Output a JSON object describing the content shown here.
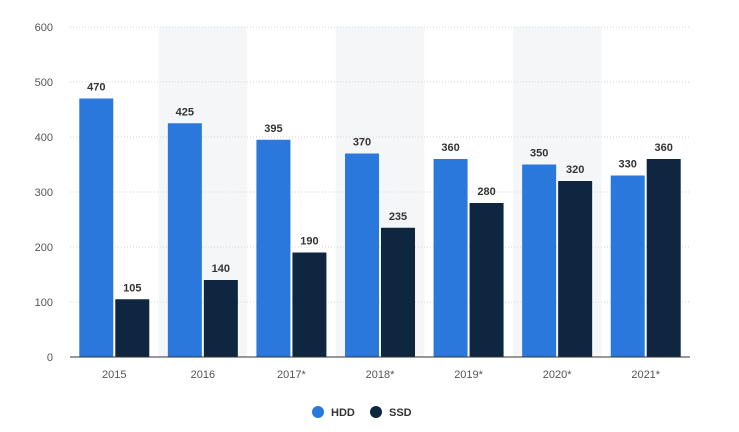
{
  "chart_data": {
    "type": "bar",
    "categories": [
      "2015",
      "2016",
      "2017*",
      "2018*",
      "2019*",
      "2020*",
      "2021*"
    ],
    "series": [
      {
        "name": "HDD",
        "values": [
          470,
          425,
          395,
          370,
          360,
          350,
          330
        ],
        "color": "#2b78dc"
      },
      {
        "name": "SSD",
        "values": [
          105,
          140,
          190,
          235,
          280,
          320,
          360
        ],
        "color": "#0f2641"
      }
    ],
    "title": "",
    "xlabel": "",
    "ylabel": "",
    "ylim": [
      0,
      600
    ],
    "yticks": [
      0,
      100,
      200,
      300,
      400,
      500,
      600
    ],
    "grid": true,
    "legend": "bottom-center",
    "colors": {
      "band": "#f5f6f8",
      "grid": "#d6d6d6",
      "axis": "#333333"
    }
  }
}
